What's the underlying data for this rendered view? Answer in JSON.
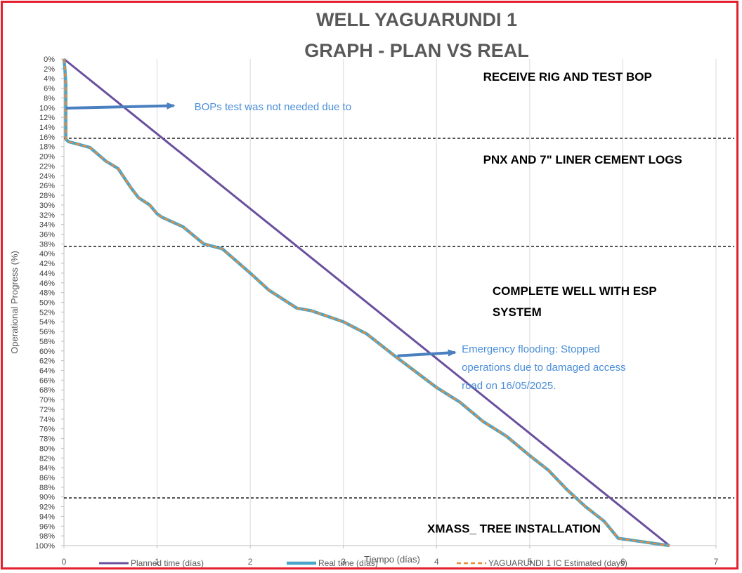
{
  "colors": {
    "planned": "#6a4f9e",
    "real": "#4aa6c8",
    "estimated": "#e88a3c",
    "arrow": "#4a7fc0",
    "frame": "#e5202e",
    "note": "#4a8ed8"
  },
  "chart_data": {
    "type": "line",
    "title": [
      "WELL YAGUARUNDI 1",
      "GRAPH  - PLAN VS REAL"
    ],
    "xlabel": "Tiempo (días)",
    "ylabel": "Operational Progress (%)",
    "xlim": [
      0,
      7
    ],
    "ylim": [
      0,
      100
    ],
    "y_inverted": true,
    "x_ticks": [
      "0",
      "1",
      "2",
      "3",
      "4",
      "5",
      "6",
      "7"
    ],
    "y_ticks": [
      "0%",
      "2%",
      "4%",
      "6%",
      "8%",
      "10%",
      "12%",
      "14%",
      "16%",
      "18%",
      "20%",
      "22%",
      "24%",
      "26%",
      "28%",
      "30%",
      "32%",
      "34%",
      "36%",
      "38%",
      "40%",
      "42%",
      "44%",
      "46%",
      "48%",
      "50%",
      "52%",
      "54%",
      "56%",
      "58%",
      "60%",
      "62%",
      "64%",
      "66%",
      "68%",
      "70%",
      "72%",
      "74%",
      "76%",
      "78%",
      "80%",
      "82%",
      "84%",
      "86%",
      "88%",
      "90%",
      "92%",
      "94%",
      "96%",
      "98%",
      "100%"
    ],
    "grid": "vertical",
    "legend_position": "bottom",
    "series": [
      {
        "name": "Planned time (días)",
        "style": "solid",
        "x": [
          0,
          6.5
        ],
        "y": [
          0,
          100
        ]
      },
      {
        "name": "Real time (días)",
        "style": "solid",
        "x": [
          0,
          0.01,
          0.02,
          0.02,
          0.05,
          0.15,
          0.28,
          0.45,
          0.58,
          0.72,
          0.8,
          0.92,
          1.0,
          1.05,
          1.28,
          1.5,
          1.7,
          2.0,
          2.2,
          2.5,
          2.65,
          3.0,
          3.25,
          3.55,
          4.0,
          4.25,
          4.5,
          4.75,
          5.0,
          5.2,
          5.4,
          5.6,
          5.8,
          5.95,
          6.5
        ],
        "y": [
          0,
          2,
          5,
          16.5,
          17.0,
          17.5,
          18.2,
          21.0,
          22.5,
          26.5,
          28.5,
          30.0,
          31.8,
          32.5,
          34.5,
          38.0,
          39.0,
          44.0,
          47.5,
          51.2,
          51.7,
          54.0,
          56.5,
          61.0,
          67.5,
          70.5,
          74.5,
          77.5,
          81.5,
          84.5,
          88.5,
          92.0,
          95.0,
          98.5,
          100
        ]
      },
      {
        "name": "YAGUARUNDI 1 IC Estimated (days)",
        "style": "dashed",
        "x": [
          0,
          0.01,
          0.02,
          0.02,
          0.05,
          0.15,
          0.28,
          0.45,
          0.58,
          0.72,
          0.8,
          0.92,
          1.0,
          1.05,
          1.28,
          1.5,
          1.7,
          2.0,
          2.2,
          2.5,
          2.65,
          3.0,
          3.25,
          3.55,
          4.0,
          4.25,
          4.5,
          4.75,
          5.0,
          5.2,
          5.4,
          5.6,
          5.8,
          5.95,
          6.5
        ],
        "y": [
          0,
          2,
          5,
          16.5,
          17.0,
          17.5,
          18.2,
          21.0,
          22.5,
          26.5,
          28.5,
          30.0,
          31.8,
          32.5,
          34.5,
          38.0,
          39.0,
          44.0,
          47.5,
          51.2,
          51.7,
          54.0,
          56.5,
          61.0,
          67.5,
          70.5,
          74.5,
          77.5,
          81.5,
          84.5,
          88.5,
          92.0,
          95.0,
          98.5,
          100
        ]
      }
    ],
    "phase_lines_y": [
      16.3,
      38.5,
      90.2
    ],
    "phases": [
      {
        "lines": [
          "RECEIVE RIG AND TEST BOP"
        ],
        "x": 4.5,
        "y": 4.5
      },
      {
        "lines": [
          "PNX AND 7\" LINER CEMENT LOGS"
        ],
        "x": 4.5,
        "y": 21.5
      },
      {
        "lines": [
          "COMPLETE WELL WITH ESP",
          "SYSTEM"
        ],
        "x": 4.6,
        "y": 48.5
      },
      {
        "lines": [
          "XMASS_ TREE INSTALLATION"
        ],
        "x": 3.9,
        "y": 97.3
      }
    ],
    "annotations": [
      {
        "lines": [
          "BOPs test was not needed due to"
        ],
        "x": 1.4,
        "y": 10.5,
        "arrow_from": [
          0.02,
          10.1
        ],
        "arrow_to": [
          1.18,
          9.6
        ]
      },
      {
        "lines": [
          "Emergency flooding: Stopped",
          "operations due to damaged access",
          "road on 16/05/2025."
        ],
        "x": 4.27,
        "y": 60.3,
        "arrow_from": [
          3.58,
          61.0
        ],
        "arrow_to": [
          4.2,
          60.3
        ]
      }
    ]
  }
}
